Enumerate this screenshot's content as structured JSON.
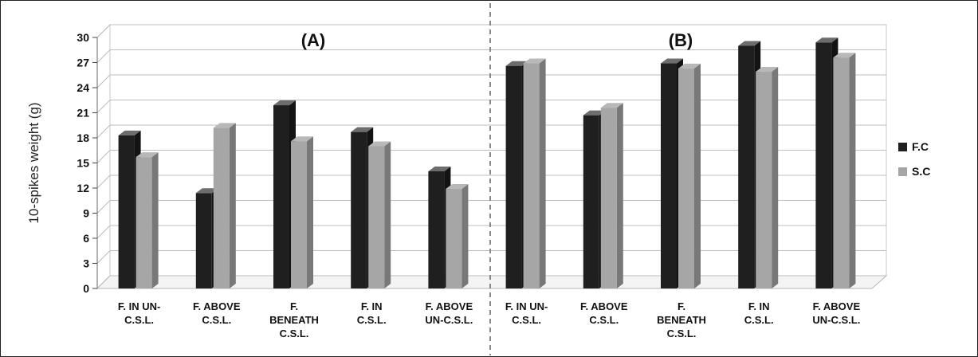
{
  "chart_data": {
    "type": "bar",
    "ylabel": "10-spikes weight (g)",
    "ylim": [
      0,
      30
    ],
    "yticks": [
      "0",
      "3",
      "6",
      "9",
      "12",
      "15",
      "18",
      "21",
      "24",
      "27",
      "30"
    ],
    "grid": true,
    "legend_position": "right",
    "colors": {
      "F.C": "#1f1f1f",
      "S.C": "#a6a6a6"
    },
    "panels": [
      {
        "label": "(A)",
        "categories": [
          [
            "F. IN UN-",
            "C.S.L."
          ],
          [
            "F. ABOVE",
            "C.S.L."
          ],
          [
            "F.",
            "BENEATH",
            "C.S.L."
          ],
          [
            "F. IN",
            "C.S.L."
          ],
          [
            "F. ABOVE",
            "UN-C.S.L."
          ]
        ],
        "series": [
          {
            "name": "F.C",
            "values": [
              18.3,
              11.4,
              21.9,
              18.7,
              14.0
            ]
          },
          {
            "name": "S.C",
            "values": [
              15.7,
              19.2,
              17.6,
              17.0,
              11.9
            ]
          }
        ]
      },
      {
        "label": "(B)",
        "categories": [
          [
            "F. IN UN-",
            "C.S.L."
          ],
          [
            "F. ABOVE",
            "C.S.L."
          ],
          [
            "F.",
            "BENEATH",
            "C.S.L."
          ],
          [
            "F. IN",
            "C.S.L."
          ],
          [
            "F. ABOVE",
            "UN-C.S.L."
          ]
        ],
        "series": [
          {
            "name": "F.C",
            "values": [
              26.6,
              20.7,
              26.9,
              29.0,
              29.4
            ]
          },
          {
            "name": "S.C",
            "values": [
              26.9,
              21.6,
              26.3,
              25.9,
              27.6
            ]
          }
        ]
      }
    ]
  }
}
